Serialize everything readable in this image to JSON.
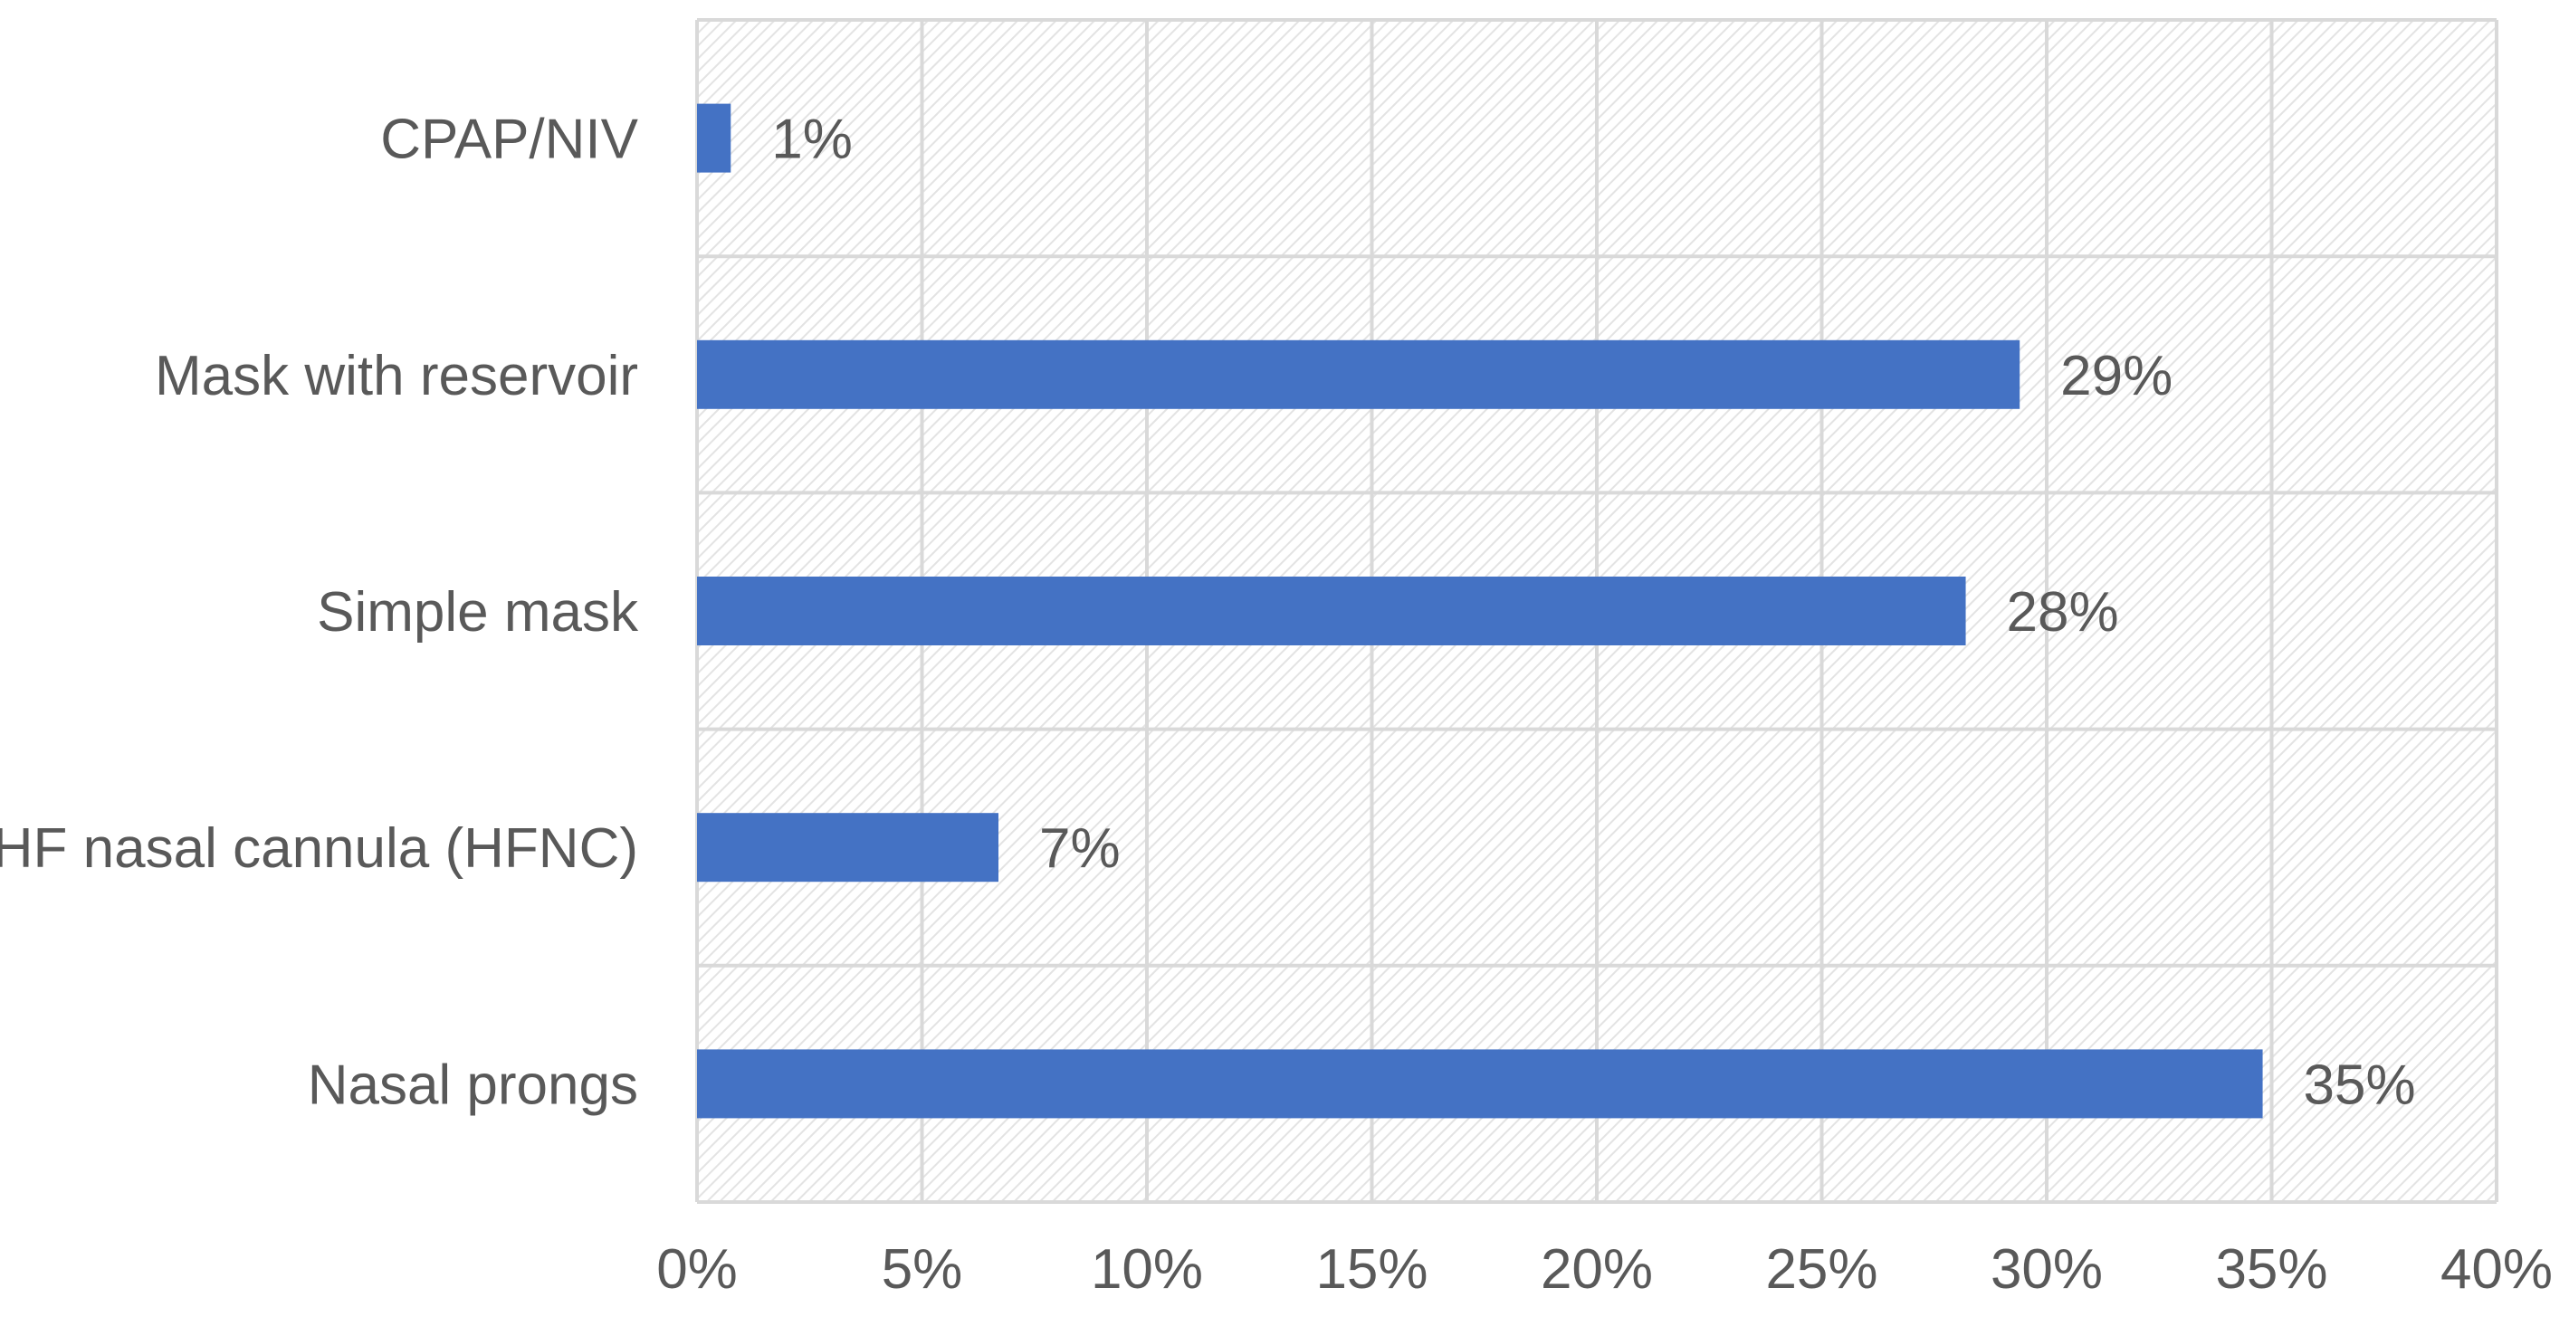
{
  "chart_data": {
    "type": "bar",
    "orientation": "horizontal",
    "categories": [
      "CPAP/NIV",
      "Mask with reservoir",
      "Simple mask",
      "HF nasal cannula (HFNC)",
      "Nasal prongs"
    ],
    "values": [
      0.75,
      29.4,
      28.2,
      6.7,
      34.8
    ],
    "data_labels": [
      "1%",
      "29%",
      "28%",
      "7%",
      "35%"
    ],
    "xlim": [
      0,
      40
    ],
    "x_ticks": [
      0,
      5,
      10,
      15,
      20,
      25,
      30,
      35,
      40
    ],
    "x_tick_labels": [
      "0%",
      "5%",
      "10%",
      "15%",
      "20%",
      "25%",
      "30%",
      "35%",
      "40%"
    ],
    "title": "",
    "xlabel": "",
    "ylabel": "",
    "grid": true,
    "plot_background": "hatched",
    "colors": {
      "bar": "#4472C4",
      "grid": "#D9D9D9",
      "text": "#595959",
      "hatch": "#E3E3E3"
    }
  }
}
